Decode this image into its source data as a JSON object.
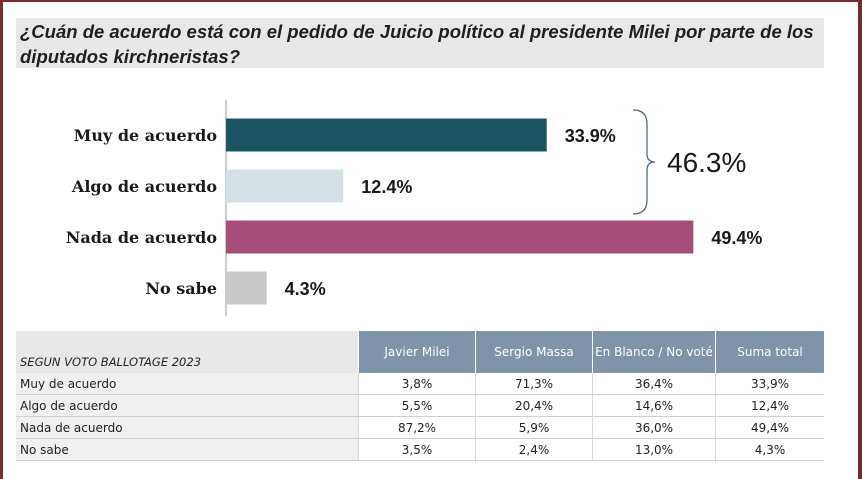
{
  "title": "¿Cuán de acuerdo está con el pedido de Juicio político al presidente Milei por parte de los diputados kirchneristas?",
  "chart_data": {
    "type": "bar",
    "orientation": "horizontal",
    "categories": [
      "Muy de acuerdo",
      "Algo de acuerdo",
      "Nada de acuerdo",
      "No sabe"
    ],
    "values": [
      33.9,
      12.4,
      49.4,
      4.3
    ],
    "value_labels": [
      "33.9%",
      "12.4%",
      "49.4%",
      "4.3%"
    ],
    "colors": [
      "#1b5463",
      "#d3e0e6",
      "#a64d79",
      "#c8c8c8"
    ],
    "xlim": [
      0,
      50
    ],
    "grid": false,
    "bracket": {
      "label": "46.3%",
      "groups": [
        "Muy de acuerdo",
        "Algo de acuerdo"
      ]
    }
  },
  "table": {
    "caption": "SEGUN VOTO BALLOTAGE 2023",
    "columns": [
      "Javier Milei",
      "Sergio Massa",
      "En Blanco / No voté",
      "Suma total"
    ],
    "rows": [
      {
        "label": "Muy de acuerdo",
        "cells": [
          "3,8%",
          "71,3%",
          "36,4%",
          "33,9%"
        ]
      },
      {
        "label": "Algo de acuerdo",
        "cells": [
          "5,5%",
          "20,4%",
          "14,6%",
          "12,4%"
        ]
      },
      {
        "label": "Nada de acuerdo",
        "cells": [
          "87,2%",
          "5,9%",
          "36,0%",
          "49,4%"
        ]
      },
      {
        "label": "No sabe",
        "cells": [
          "3,5%",
          "2,4%",
          "13,0%",
          "4,3%"
        ]
      }
    ]
  }
}
